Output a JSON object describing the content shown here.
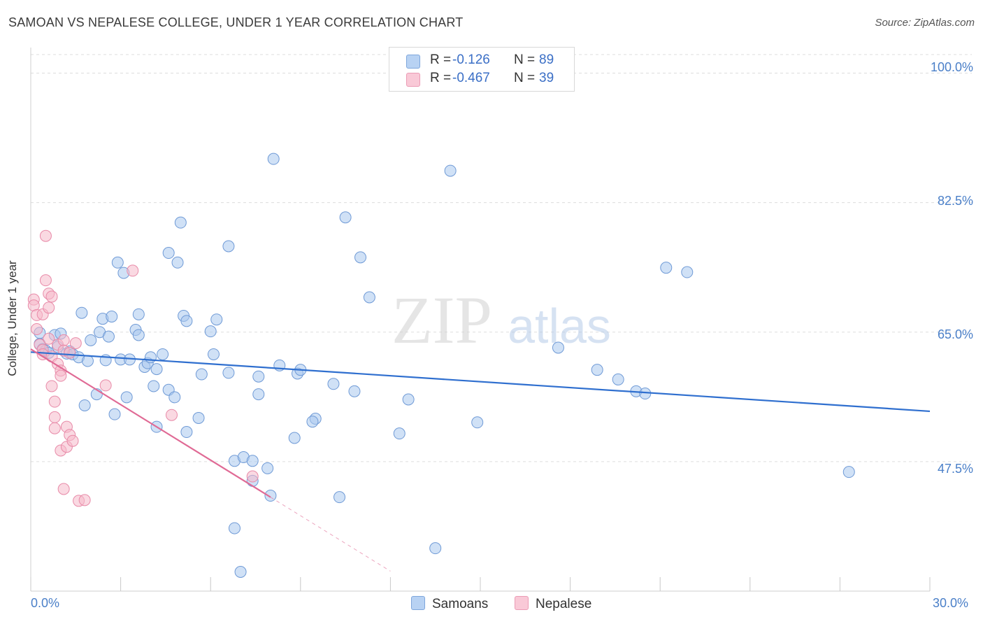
{
  "header": {
    "title": "SAMOAN VS NEPALESE COLLEGE, UNDER 1 YEAR CORRELATION CHART",
    "source": "Source: ZipAtlas.com"
  },
  "watermark": {
    "zip": "ZIP",
    "atlas": "atlas"
  },
  "legend": {
    "r_label": "R =",
    "n_label": "N =",
    "samoans": {
      "r": "-0.126",
      "n": "89"
    },
    "nepalese": {
      "r": "-0.467",
      "n": "39"
    }
  },
  "bottom_legend": {
    "samoans": "Samoans",
    "nepalese": "Nepalese"
  },
  "colors": {
    "samoans_fill": "#a9c8ef",
    "samoans_stroke": "#6f9ad6",
    "samoans_line": "#2f6fcf",
    "nepalese_fill": "#f6b9cb",
    "nepalese_stroke": "#e88aa8",
    "nepalese_line": "#e06a95",
    "grid": "#dddddd",
    "tick_text": "#4a7fc8"
  },
  "chart_data": {
    "type": "scatter",
    "title": "SAMOAN VS NEPALESE COLLEGE, UNDER 1 YEAR CORRELATION CHART",
    "xlabel": "",
    "ylabel": "College, Under 1 year",
    "xlim": [
      0,
      30
    ],
    "ylim": [
      30,
      102.5
    ],
    "x_tick_labels": [
      "0.0%",
      "30.0%"
    ],
    "y_ticks": [
      47.5,
      65.0,
      82.5,
      100.0
    ],
    "y_tick_labels": [
      "47.5%",
      "65.0%",
      "82.5%",
      "100.0%"
    ],
    "grid": true,
    "legend_position": "top-center",
    "series": [
      {
        "name": "Samoans",
        "r": -0.126,
        "n": 89,
        "trend": {
          "x": [
            0,
            30
          ],
          "y": [
            62.3,
            54.3
          ]
        },
        "points": [
          [
            0.3,
            64.9
          ],
          [
            0.3,
            63.4
          ],
          [
            0.4,
            62.7
          ],
          [
            0.5,
            62.5
          ],
          [
            0.6,
            62.2
          ],
          [
            0.8,
            64.6
          ],
          [
            0.9,
            63.0
          ],
          [
            1.0,
            64.8
          ],
          [
            1.2,
            62.1
          ],
          [
            1.3,
            62.4
          ],
          [
            1.4,
            62.0
          ],
          [
            1.6,
            61.6
          ],
          [
            1.7,
            67.6
          ],
          [
            1.8,
            55.1
          ],
          [
            1.9,
            61.1
          ],
          [
            2.0,
            63.9
          ],
          [
            2.2,
            56.6
          ],
          [
            2.3,
            65.0
          ],
          [
            2.4,
            66.8
          ],
          [
            2.5,
            61.2
          ],
          [
            2.7,
            67.1
          ],
          [
            2.8,
            53.9
          ],
          [
            2.9,
            74.4
          ],
          [
            3.0,
            61.3
          ],
          [
            3.1,
            73.0
          ],
          [
            3.2,
            56.2
          ],
          [
            3.3,
            61.3
          ],
          [
            3.5,
            65.3
          ],
          [
            3.6,
            64.6
          ],
          [
            3.6,
            67.4
          ],
          [
            3.8,
            60.3
          ],
          [
            3.9,
            60.8
          ],
          [
            4.0,
            61.6
          ],
          [
            4.1,
            57.7
          ],
          [
            4.2,
            60.0
          ],
          [
            4.2,
            52.2
          ],
          [
            4.4,
            62.0
          ],
          [
            4.6,
            75.7
          ],
          [
            4.6,
            57.2
          ],
          [
            4.8,
            56.2
          ],
          [
            5.0,
            79.8
          ],
          [
            5.1,
            67.2
          ],
          [
            5.2,
            66.5
          ],
          [
            5.2,
            51.5
          ],
          [
            5.6,
            53.4
          ],
          [
            5.7,
            59.3
          ],
          [
            6.0,
            65.1
          ],
          [
            6.1,
            62.0
          ],
          [
            6.2,
            66.7
          ],
          [
            6.6,
            76.6
          ],
          [
            6.6,
            59.5
          ],
          [
            6.8,
            47.6
          ],
          [
            6.8,
            38.5
          ],
          [
            7.0,
            32.6
          ],
          [
            7.1,
            48.1
          ],
          [
            7.4,
            47.6
          ],
          [
            7.6,
            59.0
          ],
          [
            7.6,
            56.6
          ],
          [
            7.9,
            46.6
          ],
          [
            8.0,
            42.9
          ],
          [
            8.1,
            88.4
          ],
          [
            8.3,
            60.5
          ],
          [
            8.8,
            50.7
          ],
          [
            8.9,
            59.4
          ],
          [
            9.0,
            59.9
          ],
          [
            9.5,
            53.3
          ],
          [
            10.1,
            58.0
          ],
          [
            10.3,
            42.7
          ],
          [
            10.5,
            80.5
          ],
          [
            10.8,
            57.0
          ],
          [
            11.0,
            75.1
          ],
          [
            11.3,
            69.7
          ],
          [
            12.3,
            51.3
          ],
          [
            12.6,
            55.9
          ],
          [
            14.0,
            86.8
          ],
          [
            14.9,
            52.8
          ],
          [
            17.6,
            62.9
          ],
          [
            18.9,
            59.9
          ],
          [
            19.6,
            58.6
          ],
          [
            20.2,
            57.0
          ],
          [
            20.5,
            56.7
          ],
          [
            21.2,
            73.7
          ],
          [
            21.9,
            73.1
          ],
          [
            27.3,
            46.1
          ],
          [
            13.5,
            35.8
          ],
          [
            4.9,
            74.4
          ],
          [
            7.4,
            44.9
          ],
          [
            9.4,
            52.9
          ],
          [
            2.6,
            64.4
          ]
        ]
      },
      {
        "name": "Nepalese",
        "r": -0.467,
        "n": 39,
        "trend": {
          "x": [
            0,
            8.0
          ],
          "y": [
            62.7,
            42.7
          ],
          "dashed_to": [
            12.0,
            32.7
          ]
        },
        "points": [
          [
            0.1,
            69.4
          ],
          [
            0.1,
            68.6
          ],
          [
            0.2,
            67.3
          ],
          [
            0.2,
            65.4
          ],
          [
            0.3,
            63.3
          ],
          [
            0.4,
            62.6
          ],
          [
            0.4,
            62.0
          ],
          [
            0.4,
            67.4
          ],
          [
            0.5,
            78.0
          ],
          [
            0.5,
            72.0
          ],
          [
            0.6,
            70.2
          ],
          [
            0.6,
            68.3
          ],
          [
            0.6,
            64.1
          ],
          [
            0.7,
            69.8
          ],
          [
            0.7,
            61.7
          ],
          [
            0.7,
            57.7
          ],
          [
            0.8,
            53.5
          ],
          [
            0.8,
            52.0
          ],
          [
            0.9,
            60.7
          ],
          [
            0.9,
            63.3
          ],
          [
            0.8,
            55.6
          ],
          [
            1.0,
            59.8
          ],
          [
            1.0,
            59.1
          ],
          [
            1.1,
            63.9
          ],
          [
            1.0,
            49.0
          ],
          [
            1.1,
            62.5
          ],
          [
            1.1,
            43.8
          ],
          [
            1.2,
            52.2
          ],
          [
            1.2,
            49.5
          ],
          [
            1.3,
            62.2
          ],
          [
            1.3,
            51.1
          ],
          [
            1.4,
            50.3
          ],
          [
            1.6,
            42.2
          ],
          [
            1.8,
            42.3
          ],
          [
            2.5,
            57.8
          ],
          [
            3.4,
            73.3
          ],
          [
            4.7,
            53.8
          ],
          [
            7.4,
            45.5
          ],
          [
            1.5,
            63.5
          ]
        ]
      }
    ]
  }
}
